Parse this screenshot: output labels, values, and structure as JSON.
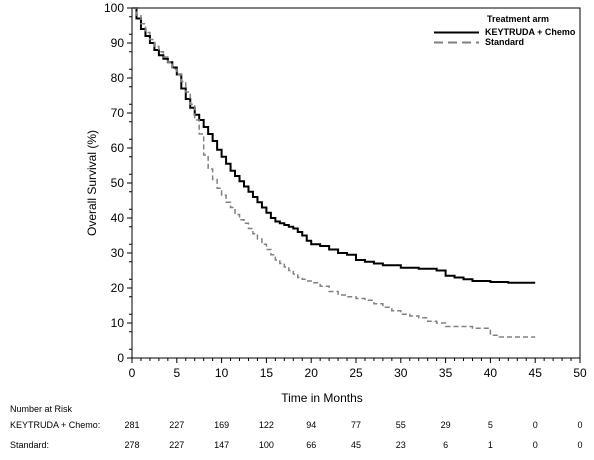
{
  "chart_data": {
    "type": "line",
    "subtype": "kaplan-meier",
    "title": "",
    "xlabel": "Time in Months",
    "ylabel": "Overall Survival (%)",
    "xlim": [
      0,
      50
    ],
    "ylim": [
      0,
      100
    ],
    "xticks": [
      0,
      5,
      10,
      15,
      20,
      25,
      30,
      35,
      40,
      45,
      50
    ],
    "yticks": [
      0,
      10,
      20,
      30,
      40,
      50,
      60,
      70,
      80,
      90,
      100
    ],
    "grid": false,
    "legend": {
      "title": "Treatment arm",
      "placement": "top-right"
    },
    "series": [
      {
        "name": "KEYTRUDA + Chemo",
        "color": "#000000",
        "dash": "solid",
        "x": [
          0,
          0.5,
          1,
          1.5,
          2,
          2.5,
          3,
          3.5,
          4,
          4.5,
          5,
          5.5,
          6,
          6.5,
          7,
          7.5,
          8,
          8.5,
          9,
          9.5,
          10,
          10.5,
          11,
          11.5,
          12,
          12.5,
          13,
          13.5,
          14,
          14.5,
          15,
          15.5,
          16,
          16.5,
          17,
          17.5,
          18,
          18.5,
          19,
          19.5,
          20,
          21,
          22,
          23,
          24,
          25,
          26,
          27,
          28,
          30,
          32,
          34,
          35,
          36,
          37,
          38,
          40,
          42,
          45
        ],
        "y": [
          100,
          97,
          94,
          92,
          90,
          88,
          86.5,
          85.5,
          84.5,
          83,
          81,
          77,
          74,
          71.5,
          69.5,
          68,
          66,
          64,
          62,
          59.5,
          57.5,
          55.5,
          53.5,
          52,
          50.5,
          49,
          47.5,
          46,
          44.5,
          43,
          41.5,
          40,
          39,
          38.5,
          38,
          37.5,
          37,
          36,
          35,
          33.5,
          32.5,
          32,
          31,
          30,
          29.5,
          28,
          27.5,
          27,
          26.5,
          25.8,
          25.5,
          25,
          23.5,
          23,
          22.5,
          22,
          21.7,
          21.5,
          21.5
        ]
      },
      {
        "name": "Standard",
        "color": "#808080",
        "dash": "dashed",
        "x": [
          0,
          0.5,
          1,
          1.5,
          2,
          2.5,
          3,
          3.5,
          4,
          4.5,
          5,
          5.5,
          6,
          6.5,
          7,
          7.5,
          8,
          8.5,
          9,
          9.5,
          10,
          10.5,
          11,
          11.5,
          12,
          12.5,
          13,
          13.5,
          14,
          14.5,
          15,
          15.5,
          16,
          16.5,
          17,
          17.5,
          18,
          18.5,
          19,
          19.5,
          20,
          21,
          22,
          23,
          24,
          25,
          26,
          27,
          28,
          29,
          30,
          31,
          32,
          33,
          34,
          35,
          37,
          38,
          39,
          40,
          41,
          43,
          45
        ],
        "y": [
          100,
          98,
          95.5,
          93,
          91,
          89,
          87.5,
          86,
          84.5,
          82.5,
          81,
          79,
          76,
          72.5,
          68,
          64,
          58,
          54,
          51,
          48.5,
          46.5,
          44.5,
          43,
          41,
          39.5,
          38.5,
          37,
          35.5,
          34,
          32.5,
          31,
          29.5,
          28,
          27,
          26,
          25,
          24,
          23,
          22.5,
          22,
          21.5,
          20.5,
          19,
          18,
          17.5,
          17,
          16.5,
          15.5,
          14.5,
          13.5,
          12.5,
          12,
          11.5,
          10.5,
          10,
          9,
          9,
          8.5,
          8.5,
          6.5,
          6,
          6,
          6
        ]
      }
    ],
    "number_at_risk": {
      "header": "Number at Risk",
      "times": [
        0,
        5,
        10,
        15,
        20,
        25,
        30,
        35,
        40,
        45,
        50
      ],
      "rows": [
        {
          "label": "KEYTRUDA + Chemo:",
          "values": [
            "281",
            "227",
            "169",
            "122",
            "94",
            "77",
            "55",
            "29",
            "5",
            "0",
            "0"
          ]
        },
        {
          "label": "Standard:",
          "values": [
            "278",
            "227",
            "147",
            "100",
            "66",
            "45",
            "23",
            "6",
            "1",
            "0",
            "0"
          ]
        }
      ]
    }
  }
}
